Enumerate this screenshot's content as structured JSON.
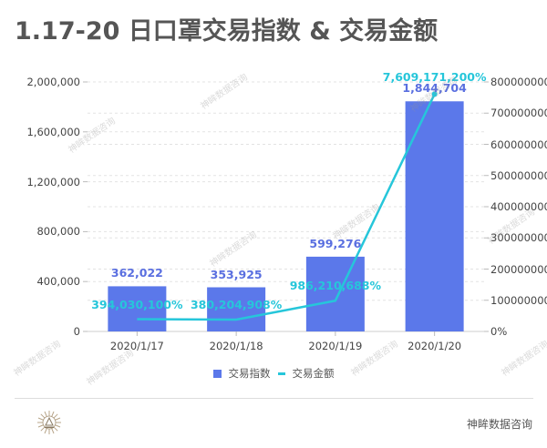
{
  "title": "1.17-20 日口罩交易指数 & 交易金额",
  "footer": {
    "brand": "神眸数据咨询",
    "logo_icon": "sunburst-logo-icon"
  },
  "watermark": "神眸数据咨询",
  "colors": {
    "bar": "#5b78ea",
    "line": "#26c6da",
    "bar_label": "#5a6fe0",
    "line_label": "#26c6da",
    "grid": "#e3e3e3",
    "axis_text": "#444444"
  },
  "chart_data": {
    "type": "bar",
    "title": "1.17-20 日口罩交易指数 & 交易金额",
    "categories": [
      "2020/1/17",
      "2020/1/18",
      "2020/1/19",
      "2020/1/20"
    ],
    "series": [
      {
        "name": "交易指数",
        "type": "bar",
        "axis": "left",
        "values": [
          362022,
          353925,
          599276,
          1844704
        ],
        "labels": [
          "362,022",
          "353,925",
          "599,276",
          "1,844,704"
        ]
      },
      {
        "name": "交易金额",
        "type": "line",
        "axis": "right",
        "values_percent": [
          394030100,
          380204908,
          986210688,
          7609171200
        ],
        "labels": [
          "394,030,100%",
          "380,204,908%",
          "986,210,688%",
          "7,609,171,200%"
        ]
      }
    ],
    "left_axis": {
      "ylim": [
        0,
        2000000
      ],
      "ticks": [
        "0",
        "400,000",
        "800,000",
        "1,200,000",
        "1,600,000",
        "2,000,000"
      ]
    },
    "right_axis": {
      "ylim": [
        0,
        8000000000
      ],
      "ticks": [
        "0%",
        "1000000000",
        "2000000000",
        "3000000000",
        "4000000000",
        "5000000000",
        "6000000000",
        "7000000000",
        "8000000000"
      ]
    },
    "grid": true,
    "legend_position": "bottom",
    "legend": [
      "交易指数",
      "交易金额"
    ]
  }
}
